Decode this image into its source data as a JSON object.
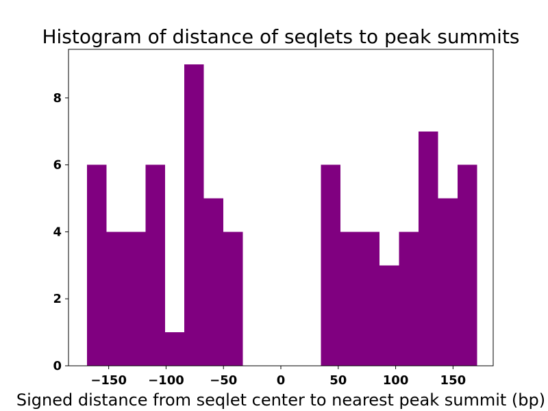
{
  "chart_data": {
    "type": "bar",
    "title": "Histogram of distance of seqlets to peak summits",
    "xlabel": "Signed distance from seqlet center to nearest peak summit (bp)",
    "ylabel": "",
    "bar_color": "#800080",
    "xlim": [
      -185,
      185
    ],
    "ylim": [
      0,
      9.45
    ],
    "bin_edges": [
      -169,
      -152,
      -135,
      -118,
      -101,
      -84,
      -67,
      -50,
      -33,
      -16,
      1,
      18,
      35,
      52,
      69,
      86,
      103,
      120,
      137,
      154,
      171
    ],
    "values": [
      6,
      4,
      4,
      6,
      1,
      9,
      5,
      4,
      0,
      0,
      0,
      0,
      6,
      4,
      4,
      3,
      4,
      7,
      5,
      6
    ],
    "x_ticks": [
      -150,
      -100,
      -50,
      0,
      50,
      100,
      150
    ],
    "x_tick_labels": [
      "−150",
      "−100",
      "−50",
      "0",
      "50",
      "100",
      "150"
    ],
    "y_ticks": [
      0,
      2,
      4,
      6,
      8
    ],
    "y_tick_labels": [
      "0",
      "2",
      "4",
      "6",
      "8"
    ],
    "grid": false
  }
}
